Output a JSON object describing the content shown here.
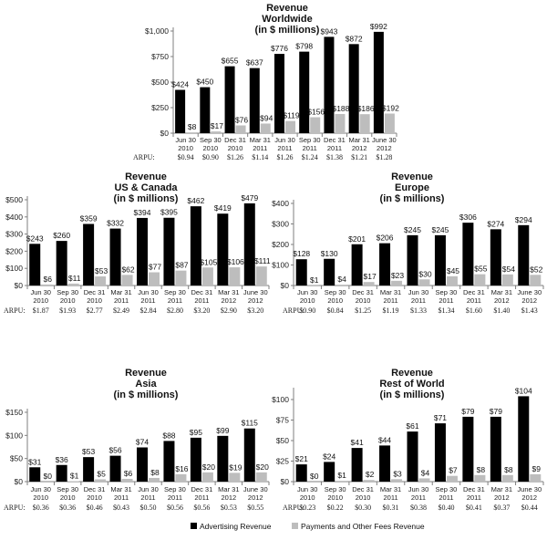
{
  "legend": {
    "advertising_label": "Advertising Revenue",
    "payments_label": "Payments and Other Fees Revenue"
  },
  "colors": {
    "advertising": "#000000",
    "payments": "#bdbdbd",
    "axis": "#7f7f7f"
  },
  "chart_data": [
    {
      "type": "bar",
      "title": [
        "Revenue",
        "Worldwide",
        "(in $ millions)"
      ],
      "categories": [
        [
          "Jun 30",
          "2010"
        ],
        [
          "Sep 30",
          "2010"
        ],
        [
          "Dec 31",
          "2010"
        ],
        [
          "Mar 31",
          "2011"
        ],
        [
          "Jun 30",
          "2011"
        ],
        [
          "Sep 30",
          "2011"
        ],
        [
          "Dec 31",
          "2011"
        ],
        [
          "Mar 31",
          "2012"
        ],
        [
          "June 30",
          "2012"
        ]
      ],
      "series": [
        {
          "name": "Advertising Revenue",
          "values": [
            424,
            450,
            655,
            637,
            776,
            798,
            943,
            872,
            992
          ]
        },
        {
          "name": "Payments and Other Fees Revenue",
          "values": [
            8,
            17,
            76,
            94,
            119,
            156,
            188,
            186,
            192
          ]
        }
      ],
      "value_labels": [
        [
          "$424",
          "$450",
          "$655",
          "$637",
          "$776",
          "$798",
          "$943",
          "$872",
          "$992"
        ],
        [
          "$8",
          "$17",
          "$76",
          "$94",
          "$119",
          "$156",
          "$188",
          "$186",
          "$192"
        ]
      ],
      "yticks": [
        0,
        250,
        500,
        750,
        1000
      ],
      "ytick_labels": [
        "$0",
        "$250",
        "$500",
        "$750",
        "$1,000"
      ],
      "ylim": [
        0,
        1000
      ],
      "arpu_label": "ARPU:",
      "arpu": [
        "$0.94",
        "$0.90",
        "$1.26",
        "$1.14",
        "$1.26",
        "$1.24",
        "$1.38",
        "$1.21",
        "$1.28"
      ]
    },
    {
      "type": "bar",
      "title": [
        "Revenue",
        "US & Canada",
        "(in $ millions)"
      ],
      "categories": [
        [
          "Jun 30",
          "2010"
        ],
        [
          "Sep 30",
          "2010"
        ],
        [
          "Dec 31",
          "2010"
        ],
        [
          "Mar 31",
          "2011"
        ],
        [
          "Jun 30",
          "2011"
        ],
        [
          "Sep 30",
          "2011"
        ],
        [
          "Dec 31",
          "2011"
        ],
        [
          "Mar 31",
          "2012"
        ],
        [
          "June 30",
          "2012"
        ]
      ],
      "series": [
        {
          "name": "Advertising Revenue",
          "values": [
            243,
            260,
            359,
            332,
            394,
            395,
            462,
            419,
            479
          ]
        },
        {
          "name": "Payments and Other Fees Revenue",
          "values": [
            6,
            11,
            53,
            62,
            77,
            87,
            105,
            106,
            111
          ]
        }
      ],
      "value_labels": [
        [
          "$243",
          "$260",
          "$359",
          "$332",
          "$394",
          "$395",
          "$462",
          "$419",
          "$479"
        ],
        [
          "$6",
          "$11",
          "$53",
          "$62",
          "$77",
          "$87",
          "$105",
          "$106",
          "$111"
        ]
      ],
      "yticks": [
        0,
        100,
        200,
        300,
        400,
        500
      ],
      "ytick_labels": [
        "$0",
        "$100",
        "$200",
        "$300",
        "$400",
        "$500"
      ],
      "ylim": [
        0,
        500
      ],
      "arpu_label": "ARPU:",
      "arpu": [
        "$1.87",
        "$1.93",
        "$2.77",
        "$2.49",
        "$2.84",
        "$2.80",
        "$3.20",
        "$2.90",
        "$3.20"
      ]
    },
    {
      "type": "bar",
      "title": [
        "Revenue",
        "Europe",
        "(in $ millions)"
      ],
      "categories": [
        [
          "Jun 30",
          "2010"
        ],
        [
          "Sep 30",
          "2010"
        ],
        [
          "Dec 31",
          "2010"
        ],
        [
          "Mar 31",
          "2011"
        ],
        [
          "Jun 30",
          "2011"
        ],
        [
          "Sep 30",
          "2011"
        ],
        [
          "Dec 31",
          "2011"
        ],
        [
          "Mar 31",
          "2012"
        ],
        [
          "June 30",
          "2012"
        ]
      ],
      "series": [
        {
          "name": "Advertising Revenue",
          "values": [
            128,
            130,
            201,
            206,
            245,
            245,
            306,
            274,
            294
          ]
        },
        {
          "name": "Payments and Other Fees Revenue",
          "values": [
            1,
            4,
            17,
            23,
            30,
            45,
            55,
            54,
            52
          ]
        }
      ],
      "value_labels": [
        [
          "$128",
          "$130",
          "$201",
          "$206",
          "$245",
          "$245",
          "$306",
          "$274",
          "$294"
        ],
        [
          "$1",
          "$4",
          "$17",
          "$23",
          "$30",
          "$45",
          "$55",
          "$54",
          "$52"
        ]
      ],
      "yticks": [
        0,
        100,
        200,
        300,
        400
      ],
      "ytick_labels": [
        "$0",
        "$100",
        "$200",
        "$300",
        "$400"
      ],
      "ylim": [
        0,
        400
      ],
      "arpu_label": "ARPU:",
      "arpu": [
        "$0.90",
        "$0.84",
        "$1.25",
        "$1.19",
        "$1.33",
        "$1.34",
        "$1.60",
        "$1.40",
        "$1.43"
      ]
    },
    {
      "type": "bar",
      "title": [
        "Revenue",
        "Asia",
        "(in $ millions)"
      ],
      "categories": [
        [
          "Jun 30",
          "2010"
        ],
        [
          "Sep 30",
          "2010"
        ],
        [
          "Dec 31",
          "2010"
        ],
        [
          "Mar 31",
          "2011"
        ],
        [
          "Jun 30",
          "2011"
        ],
        [
          "Sep 30",
          "2011"
        ],
        [
          "Dec 31",
          "2011"
        ],
        [
          "Mar 31",
          "2012"
        ],
        [
          "June 30",
          "2012"
        ]
      ],
      "series": [
        {
          "name": "Advertising Revenue",
          "values": [
            31,
            36,
            53,
            56,
            74,
            88,
            95,
            99,
            115
          ]
        },
        {
          "name": "Payments and Other Fees Revenue",
          "values": [
            0,
            1,
            5,
            6,
            8,
            16,
            20,
            19,
            20
          ]
        }
      ],
      "value_labels": [
        [
          "$31",
          "$36",
          "$53",
          "$56",
          "$74",
          "$88",
          "$95",
          "$99",
          "$115"
        ],
        [
          "$0",
          "$1",
          "$5",
          "$6",
          "$8",
          "$16",
          "$20",
          "$19",
          "$20"
        ]
      ],
      "yticks": [
        0,
        50,
        100,
        150
      ],
      "ytick_labels": [
        "$0",
        "$50",
        "$100",
        "$150"
      ],
      "ylim": [
        0,
        150
      ],
      "arpu_label": "ARPU:",
      "arpu": [
        "$0.36",
        "$0.36",
        "$0.46",
        "$0.43",
        "$0.50",
        "$0.56",
        "$0.56",
        "$0.53",
        "$0.55"
      ]
    },
    {
      "type": "bar",
      "title": [
        "Revenue",
        "Rest of World",
        "(in $ millions)"
      ],
      "categories": [
        [
          "Jun 30",
          "2010"
        ],
        [
          "Sep 30",
          "2010"
        ],
        [
          "Dec 31",
          "2010"
        ],
        [
          "Mar 31",
          "2011"
        ],
        [
          "Jun 30",
          "2011"
        ],
        [
          "Sep 30",
          "2011"
        ],
        [
          "Dec 31",
          "2011"
        ],
        [
          "Mar 31",
          "2012"
        ],
        [
          "June 30",
          "2012"
        ]
      ],
      "series": [
        {
          "name": "Advertising Revenue",
          "values": [
            21,
            24,
            41,
            44,
            61,
            71,
            79,
            79,
            104
          ]
        },
        {
          "name": "Payments and Other Fees Revenue",
          "values": [
            0,
            1,
            2,
            3,
            4,
            7,
            8,
            8,
            9
          ]
        }
      ],
      "value_labels": [
        [
          "$21",
          "$24",
          "$41",
          "$44",
          "$61",
          "$71",
          "$79",
          "$79",
          "$104"
        ],
        [
          "$0",
          "$1",
          "$2",
          "$3",
          "$4",
          "$7",
          "$8",
          "$8",
          "$9"
        ]
      ],
      "yticks": [
        0,
        25,
        50,
        75,
        100
      ],
      "ytick_labels": [
        "$0",
        "$25",
        "$50",
        "$75",
        "$100"
      ],
      "ylim": [
        0,
        110
      ],
      "arpu_label": "ARPU:",
      "arpu": [
        "$0.23",
        "$0.22",
        "$0.30",
        "$0.31",
        "$0.38",
        "$0.40",
        "$0.41",
        "$0.37",
        "$0.44"
      ]
    }
  ]
}
